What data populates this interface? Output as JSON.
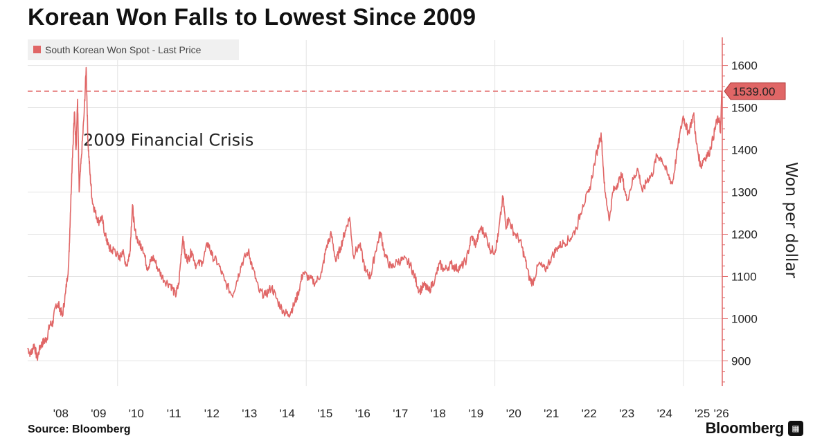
{
  "header": {
    "title": "Korean Won Falls to Lowest Since 2009"
  },
  "footer": {
    "source": "Source: Bloomberg",
    "brand": "Bloomberg"
  },
  "colors": {
    "series": "#e06666",
    "price_label_bg": "#e06666",
    "price_label_border": "#b03a3a",
    "grid": "#e3e3e3"
  },
  "chart_data": {
    "type": "line",
    "title": "Korean Won Falls to Lowest Since 2009",
    "xlabel": "",
    "ylabel": "Won per dollar",
    "ylim": [
      840,
      1660
    ],
    "xlim": [
      "2007-08-15",
      "2026-01-10"
    ],
    "yticks": [
      900,
      1000,
      1100,
      1200,
      1300,
      1400,
      1500,
      1600
    ],
    "xtick_labels": [
      {
        "label": "'08",
        "date": "2008-07-01"
      },
      {
        "label": "'09",
        "date": "2009-07-01"
      },
      {
        "label": "'10",
        "date": "2010-07-01"
      },
      {
        "label": "'11",
        "date": "2011-07-01"
      },
      {
        "label": "'12",
        "date": "2012-07-01"
      },
      {
        "label": "'13",
        "date": "2013-07-01"
      },
      {
        "label": "'14",
        "date": "2014-07-01"
      },
      {
        "label": "'15",
        "date": "2015-07-01"
      },
      {
        "label": "'16",
        "date": "2016-07-01"
      },
      {
        "label": "'17",
        "date": "2017-07-01"
      },
      {
        "label": "'18",
        "date": "2018-07-01"
      },
      {
        "label": "'19",
        "date": "2019-07-01"
      },
      {
        "label": "'20",
        "date": "2020-07-01"
      },
      {
        "label": "'21",
        "date": "2021-07-01"
      },
      {
        "label": "'22",
        "date": "2022-07-01"
      },
      {
        "label": "'23",
        "date": "2023-07-01"
      },
      {
        "label": "'24",
        "date": "2024-07-01"
      },
      {
        "label": "'25",
        "date": "2025-07-01"
      },
      {
        "label": "'26",
        "date": "2026-01-01"
      }
    ],
    "vgrid_dates": [
      "2010-01-01",
      "2015-01-01",
      "2020-01-01",
      "2025-01-01"
    ],
    "grid": true,
    "legend": {
      "position": "top-left",
      "entries": [
        "South Korean Won Spot - Last Price"
      ]
    },
    "last_price": {
      "value": 1539.0,
      "label": "1539.00",
      "line_style": "dashed"
    },
    "annotations": [
      {
        "text": "2009 Financial Crisis",
        "x": "2009-02-01",
        "y": 1410
      }
    ],
    "series": [
      {
        "name": "South Korean Won Spot - Last Price",
        "points": [
          [
            "2007-08-15",
            930
          ],
          [
            "2007-09-15",
            915
          ],
          [
            "2007-10-15",
            940
          ],
          [
            "2007-11-15",
            905
          ],
          [
            "2007-12-15",
            935
          ],
          [
            "2008-01-15",
            945
          ],
          [
            "2008-02-15",
            952
          ],
          [
            "2008-03-15",
            985
          ],
          [
            "2008-04-15",
            990
          ],
          [
            "2008-05-15",
            1035
          ],
          [
            "2008-06-15",
            1030
          ],
          [
            "2008-07-15",
            1005
          ],
          [
            "2008-08-15",
            1060
          ],
          [
            "2008-09-15",
            1130
          ],
          [
            "2008-10-01",
            1250
          ],
          [
            "2008-10-20",
            1380
          ],
          [
            "2008-11-10",
            1490
          ],
          [
            "2008-11-25",
            1400
          ],
          [
            "2008-12-10",
            1520
          ],
          [
            "2008-12-25",
            1300
          ],
          [
            "2009-01-15",
            1380
          ],
          [
            "2009-02-10",
            1480
          ],
          [
            "2009-03-03",
            1595
          ],
          [
            "2009-03-20",
            1420
          ],
          [
            "2009-04-10",
            1340
          ],
          [
            "2009-05-01",
            1280
          ],
          [
            "2009-06-01",
            1250
          ],
          [
            "2009-07-01",
            1230
          ],
          [
            "2009-08-01",
            1240
          ],
          [
            "2009-09-01",
            1200
          ],
          [
            "2009-10-01",
            1175
          ],
          [
            "2009-11-01",
            1160
          ],
          [
            "2009-12-01",
            1165
          ],
          [
            "2010-01-15",
            1140
          ],
          [
            "2010-02-15",
            1160
          ],
          [
            "2010-04-01",
            1125
          ],
          [
            "2010-05-01",
            1160
          ],
          [
            "2010-05-25",
            1270
          ],
          [
            "2010-06-15",
            1210
          ],
          [
            "2010-08-01",
            1175
          ],
          [
            "2010-09-01",
            1170
          ],
          [
            "2010-10-15",
            1120
          ],
          [
            "2010-11-15",
            1135
          ],
          [
            "2010-12-15",
            1145
          ],
          [
            "2011-02-01",
            1115
          ],
          [
            "2011-04-01",
            1090
          ],
          [
            "2011-06-01",
            1080
          ],
          [
            "2011-07-15",
            1055
          ],
          [
            "2011-08-15",
            1080
          ],
          [
            "2011-09-25",
            1195
          ],
          [
            "2011-10-15",
            1150
          ],
          [
            "2011-11-15",
            1140
          ],
          [
            "2011-12-20",
            1160
          ],
          [
            "2012-02-01",
            1125
          ],
          [
            "2012-04-01",
            1135
          ],
          [
            "2012-05-25",
            1180
          ],
          [
            "2012-07-01",
            1150
          ],
          [
            "2012-09-01",
            1130
          ],
          [
            "2012-11-01",
            1090
          ],
          [
            "2013-01-15",
            1055
          ],
          [
            "2013-03-01",
            1090
          ],
          [
            "2013-04-15",
            1130
          ],
          [
            "2013-06-20",
            1160
          ],
          [
            "2013-08-01",
            1120
          ],
          [
            "2013-10-01",
            1065
          ],
          [
            "2013-12-01",
            1055
          ],
          [
            "2014-02-01",
            1075
          ],
          [
            "2014-04-01",
            1040
          ],
          [
            "2014-06-01",
            1015
          ],
          [
            "2014-07-15",
            1010
          ],
          [
            "2014-09-01",
            1030
          ],
          [
            "2014-10-15",
            1060
          ],
          [
            "2014-12-01",
            1110
          ],
          [
            "2015-02-01",
            1095
          ],
          [
            "2015-04-01",
            1085
          ],
          [
            "2015-06-01",
            1110
          ],
          [
            "2015-07-15",
            1170
          ],
          [
            "2015-09-01",
            1200
          ],
          [
            "2015-10-15",
            1135
          ],
          [
            "2015-12-01",
            1170
          ],
          [
            "2016-01-15",
            1210
          ],
          [
            "2016-02-25",
            1240
          ],
          [
            "2016-04-01",
            1150
          ],
          [
            "2016-06-01",
            1175
          ],
          [
            "2016-08-01",
            1110
          ],
          [
            "2016-09-15",
            1100
          ],
          [
            "2016-11-01",
            1160
          ],
          [
            "2016-12-20",
            1205
          ],
          [
            "2017-02-01",
            1150
          ],
          [
            "2017-04-01",
            1120
          ],
          [
            "2017-06-01",
            1135
          ],
          [
            "2017-08-01",
            1140
          ],
          [
            "2017-10-01",
            1130
          ],
          [
            "2017-11-15",
            1100
          ],
          [
            "2018-01-01",
            1065
          ],
          [
            "2018-02-15",
            1080
          ],
          [
            "2018-04-01",
            1065
          ],
          [
            "2018-06-01",
            1095
          ],
          [
            "2018-07-15",
            1130
          ],
          [
            "2018-09-01",
            1115
          ],
          [
            "2018-11-01",
            1130
          ],
          [
            "2018-12-15",
            1120
          ],
          [
            "2019-02-01",
            1120
          ],
          [
            "2019-04-01",
            1140
          ],
          [
            "2019-05-20",
            1195
          ],
          [
            "2019-07-01",
            1175
          ],
          [
            "2019-08-15",
            1215
          ],
          [
            "2019-10-01",
            1200
          ],
          [
            "2019-11-15",
            1165
          ],
          [
            "2020-01-01",
            1160
          ],
          [
            "2020-02-01",
            1195
          ],
          [
            "2020-03-19",
            1290
          ],
          [
            "2020-04-15",
            1220
          ],
          [
            "2020-05-15",
            1235
          ],
          [
            "2020-07-01",
            1205
          ],
          [
            "2020-09-01",
            1185
          ],
          [
            "2020-10-15",
            1145
          ],
          [
            "2020-12-01",
            1095
          ],
          [
            "2021-01-01",
            1085
          ],
          [
            "2021-03-01",
            1130
          ],
          [
            "2021-05-01",
            1115
          ],
          [
            "2021-07-01",
            1145
          ],
          [
            "2021-09-01",
            1170
          ],
          [
            "2021-11-01",
            1180
          ],
          [
            "2022-01-01",
            1190
          ],
          [
            "2022-03-01",
            1215
          ],
          [
            "2022-05-01",
            1270
          ],
          [
            "2022-07-01",
            1300
          ],
          [
            "2022-09-01",
            1380
          ],
          [
            "2022-10-25",
            1440
          ],
          [
            "2022-12-01",
            1300
          ],
          [
            "2023-01-15",
            1235
          ],
          [
            "2023-02-15",
            1300
          ],
          [
            "2023-04-01",
            1320
          ],
          [
            "2023-05-15",
            1340
          ],
          [
            "2023-07-01",
            1280
          ],
          [
            "2023-09-01",
            1330
          ],
          [
            "2023-10-15",
            1355
          ],
          [
            "2023-12-01",
            1300
          ],
          [
            "2024-01-15",
            1330
          ],
          [
            "2024-03-01",
            1340
          ],
          [
            "2024-04-15",
            1385
          ],
          [
            "2024-06-01",
            1380
          ],
          [
            "2024-08-01",
            1340
          ],
          [
            "2024-09-15",
            1320
          ],
          [
            "2024-11-01",
            1400
          ],
          [
            "2024-12-27",
            1480
          ],
          [
            "2025-01-20",
            1460
          ],
          [
            "2025-02-15",
            1440
          ],
          [
            "2025-04-08",
            1485
          ],
          [
            "2025-05-01",
            1420
          ],
          [
            "2025-06-15",
            1360
          ],
          [
            "2025-07-15",
            1380
          ],
          [
            "2025-09-01",
            1390
          ],
          [
            "2025-10-15",
            1430
          ],
          [
            "2025-11-15",
            1465
          ],
          [
            "2025-12-10",
            1475
          ],
          [
            "2025-12-24",
            1440
          ],
          [
            "2026-01-05",
            1539
          ]
        ]
      }
    ]
  }
}
